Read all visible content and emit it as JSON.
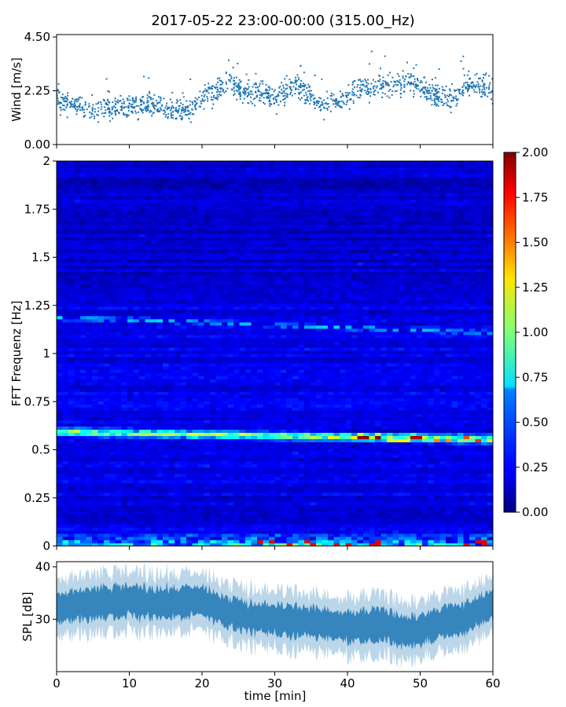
{
  "figure": {
    "title": "2017-05-22 23:00-00:00 (315.00_Hz)"
  },
  "chart_data": [
    {
      "type": "scatter",
      "title": "",
      "xlabel": "",
      "ylabel": "Wind [m/s]",
      "xlim": [
        0,
        60
      ],
      "ylim": [
        0,
        4.6
      ],
      "yticks": [
        "0.00",
        "2.25",
        "4.50"
      ],
      "ytick_values": [
        0,
        2.25,
        4.5
      ],
      "marker_color": "#1f77b4",
      "trend": {
        "x": [
          0,
          3,
          6,
          9,
          12,
          15,
          18,
          20,
          22,
          24,
          26,
          28,
          30,
          33,
          36,
          39,
          42,
          45,
          48,
          51,
          54,
          57,
          60
        ],
        "y": [
          1.9,
          1.6,
          1.4,
          1.6,
          1.7,
          1.55,
          1.4,
          1.9,
          2.3,
          2.6,
          2.1,
          2.3,
          1.9,
          2.5,
          1.7,
          1.9,
          2.3,
          2.5,
          2.6,
          2.2,
          1.9,
          2.5,
          2.3
        ]
      },
      "spread": 0.45,
      "n_points": 1400
    },
    {
      "type": "heatmap",
      "title": "",
      "xlabel": "",
      "ylabel": "FFT Frequenz [Hz]",
      "xlim": [
        0,
        60
      ],
      "ylim": [
        0,
        2
      ],
      "yticks": [
        "0",
        "0.25",
        "0.5",
        "0.75",
        "1",
        "1.25",
        "1.5",
        "1.75",
        "2"
      ],
      "ytick_values": [
        0,
        0.25,
        0.5,
        0.75,
        1,
        1.25,
        1.5,
        1.75,
        2
      ],
      "colormap": "jet",
      "colorbar": {
        "range": [
          0,
          2
        ],
        "ticks": [
          "0.00",
          "0.25",
          "0.50",
          "0.75",
          "1.00",
          "1.25",
          "1.50",
          "1.75",
          "2.00"
        ],
        "tick_values": [
          0,
          0.25,
          0.5,
          0.75,
          1,
          1.25,
          1.5,
          1.75,
          2
        ]
      },
      "background_level": 0.2,
      "features": [
        {
          "kind": "band",
          "freq_start": 0.595,
          "freq_end": 0.555,
          "level": 0.9,
          "peaks_near_end": 1.9
        },
        {
          "kind": "band",
          "freq_start": 1.19,
          "freq_end": 1.11,
          "level": 0.45
        },
        {
          "kind": "lowfreq",
          "freq_max": 0.08,
          "level": 0.6,
          "peaks": 1.8
        }
      ]
    },
    {
      "type": "area",
      "title": "",
      "xlabel": "time [min]",
      "ylabel": "SPL [dB]",
      "xlim": [
        0,
        60
      ],
      "ylim": [
        20,
        41
      ],
      "yticks": [
        "30",
        "40"
      ],
      "ytick_values": [
        30,
        40
      ],
      "xticks": [
        "0",
        "10",
        "20",
        "30",
        "40",
        "50",
        "60"
      ],
      "xtick_values": [
        0,
        10,
        20,
        30,
        40,
        50,
        60
      ],
      "color": "#1f77b4",
      "trend": {
        "x": [
          0,
          5,
          10,
          15,
          20,
          23,
          26,
          30,
          35,
          40,
          45,
          48,
          50,
          53,
          56,
          60
        ],
        "y": [
          32,
          33,
          33.5,
          33,
          33.5,
          31.5,
          30.5,
          30,
          29.5,
          28.5,
          29,
          27.5,
          28,
          29.5,
          30,
          33
        ]
      },
      "spread": 3.5
    }
  ]
}
